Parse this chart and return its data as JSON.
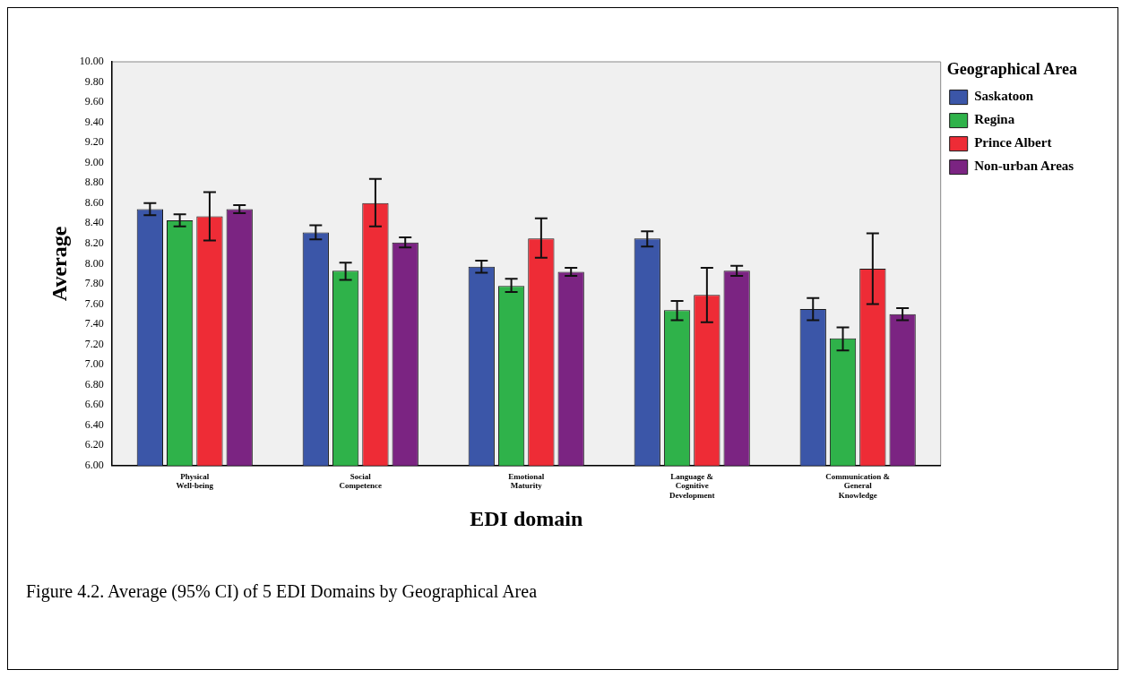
{
  "chart_data": {
    "type": "bar",
    "xlabel": "EDI domain",
    "ylabel": "Average",
    "legend_title": "Geographical Area",
    "legend": "right",
    "categories": [
      "Physical Well-being",
      "Social Competence",
      "Emotional Maturity",
      "Language & Cognitive Development",
      "Communication & General Knowledge"
    ],
    "series": [
      {
        "name": "Saskatoon",
        "color": "#3b56a8",
        "values": [
          8.54,
          8.31,
          7.97,
          8.25,
          7.55
        ],
        "errors": [
          [
            8.48,
            8.6
          ],
          [
            8.24,
            8.38
          ],
          [
            7.91,
            8.03
          ],
          [
            8.17,
            8.32
          ],
          [
            7.44,
            7.66
          ]
        ]
      },
      {
        "name": "Regina",
        "color": "#2fb24a",
        "values": [
          8.43,
          7.93,
          7.78,
          7.54,
          7.26
        ],
        "errors": [
          [
            8.37,
            8.49
          ],
          [
            7.84,
            8.01
          ],
          [
            7.72,
            7.85
          ],
          [
            7.44,
            7.63
          ],
          [
            7.14,
            7.37
          ]
        ]
      },
      {
        "name": "Prince Albert",
        "color": "#ee2c36",
        "values": [
          8.47,
          8.6,
          8.25,
          7.69,
          7.95
        ],
        "errors": [
          [
            8.23,
            8.71
          ],
          [
            8.37,
            8.84
          ],
          [
            8.06,
            8.45
          ],
          [
            7.42,
            7.96
          ],
          [
            7.6,
            8.3
          ]
        ]
      },
      {
        "name": "Non-urban Areas",
        "color": "#7b2482",
        "values": [
          8.54,
          8.21,
          7.92,
          7.93,
          7.5
        ],
        "errors": [
          [
            8.5,
            8.58
          ],
          [
            8.16,
            8.26
          ],
          [
            7.88,
            7.96
          ],
          [
            7.88,
            7.98
          ],
          [
            7.44,
            7.56
          ]
        ]
      }
    ],
    "ylim": [
      6,
      10
    ],
    "yticks": [
      {
        "value": 6,
        "label": "6.00"
      },
      {
        "value": 6.2,
        "label": "6.20"
      },
      {
        "value": 6.4,
        "label": "6.40"
      },
      {
        "value": 6.6,
        "label": "6.60"
      },
      {
        "value": 6.8,
        "label": "6.80"
      },
      {
        "value": 7,
        "label": "7.00"
      },
      {
        "value": 7.2,
        "label": "7.20"
      },
      {
        "value": 7.4,
        "label": "7.40"
      },
      {
        "value": 7.6,
        "label": "7.60"
      },
      {
        "value": 7.8,
        "label": "7.80"
      },
      {
        "value": 8,
        "label": "8.00"
      },
      {
        "value": 8.2,
        "label": "8.20"
      },
      {
        "value": 8.4,
        "label": "8.40"
      },
      {
        "value": 8.6,
        "label": "8.60"
      },
      {
        "value": 8.8,
        "label": "8.80"
      },
      {
        "value": 9,
        "label": "9.00"
      },
      {
        "value": 9.2,
        "label": "9.20"
      },
      {
        "value": 9.4,
        "label": "9.40"
      },
      {
        "value": 9.6,
        "label": "9.60"
      },
      {
        "value": 9.8,
        "label": "9.80"
      },
      {
        "value": 10,
        "label": "10.00"
      }
    ],
    "grid": false,
    "annotations": [
      "Figure 4.2. Average (95% CI) of 5 EDI Domains by Geographical Area"
    ]
  }
}
